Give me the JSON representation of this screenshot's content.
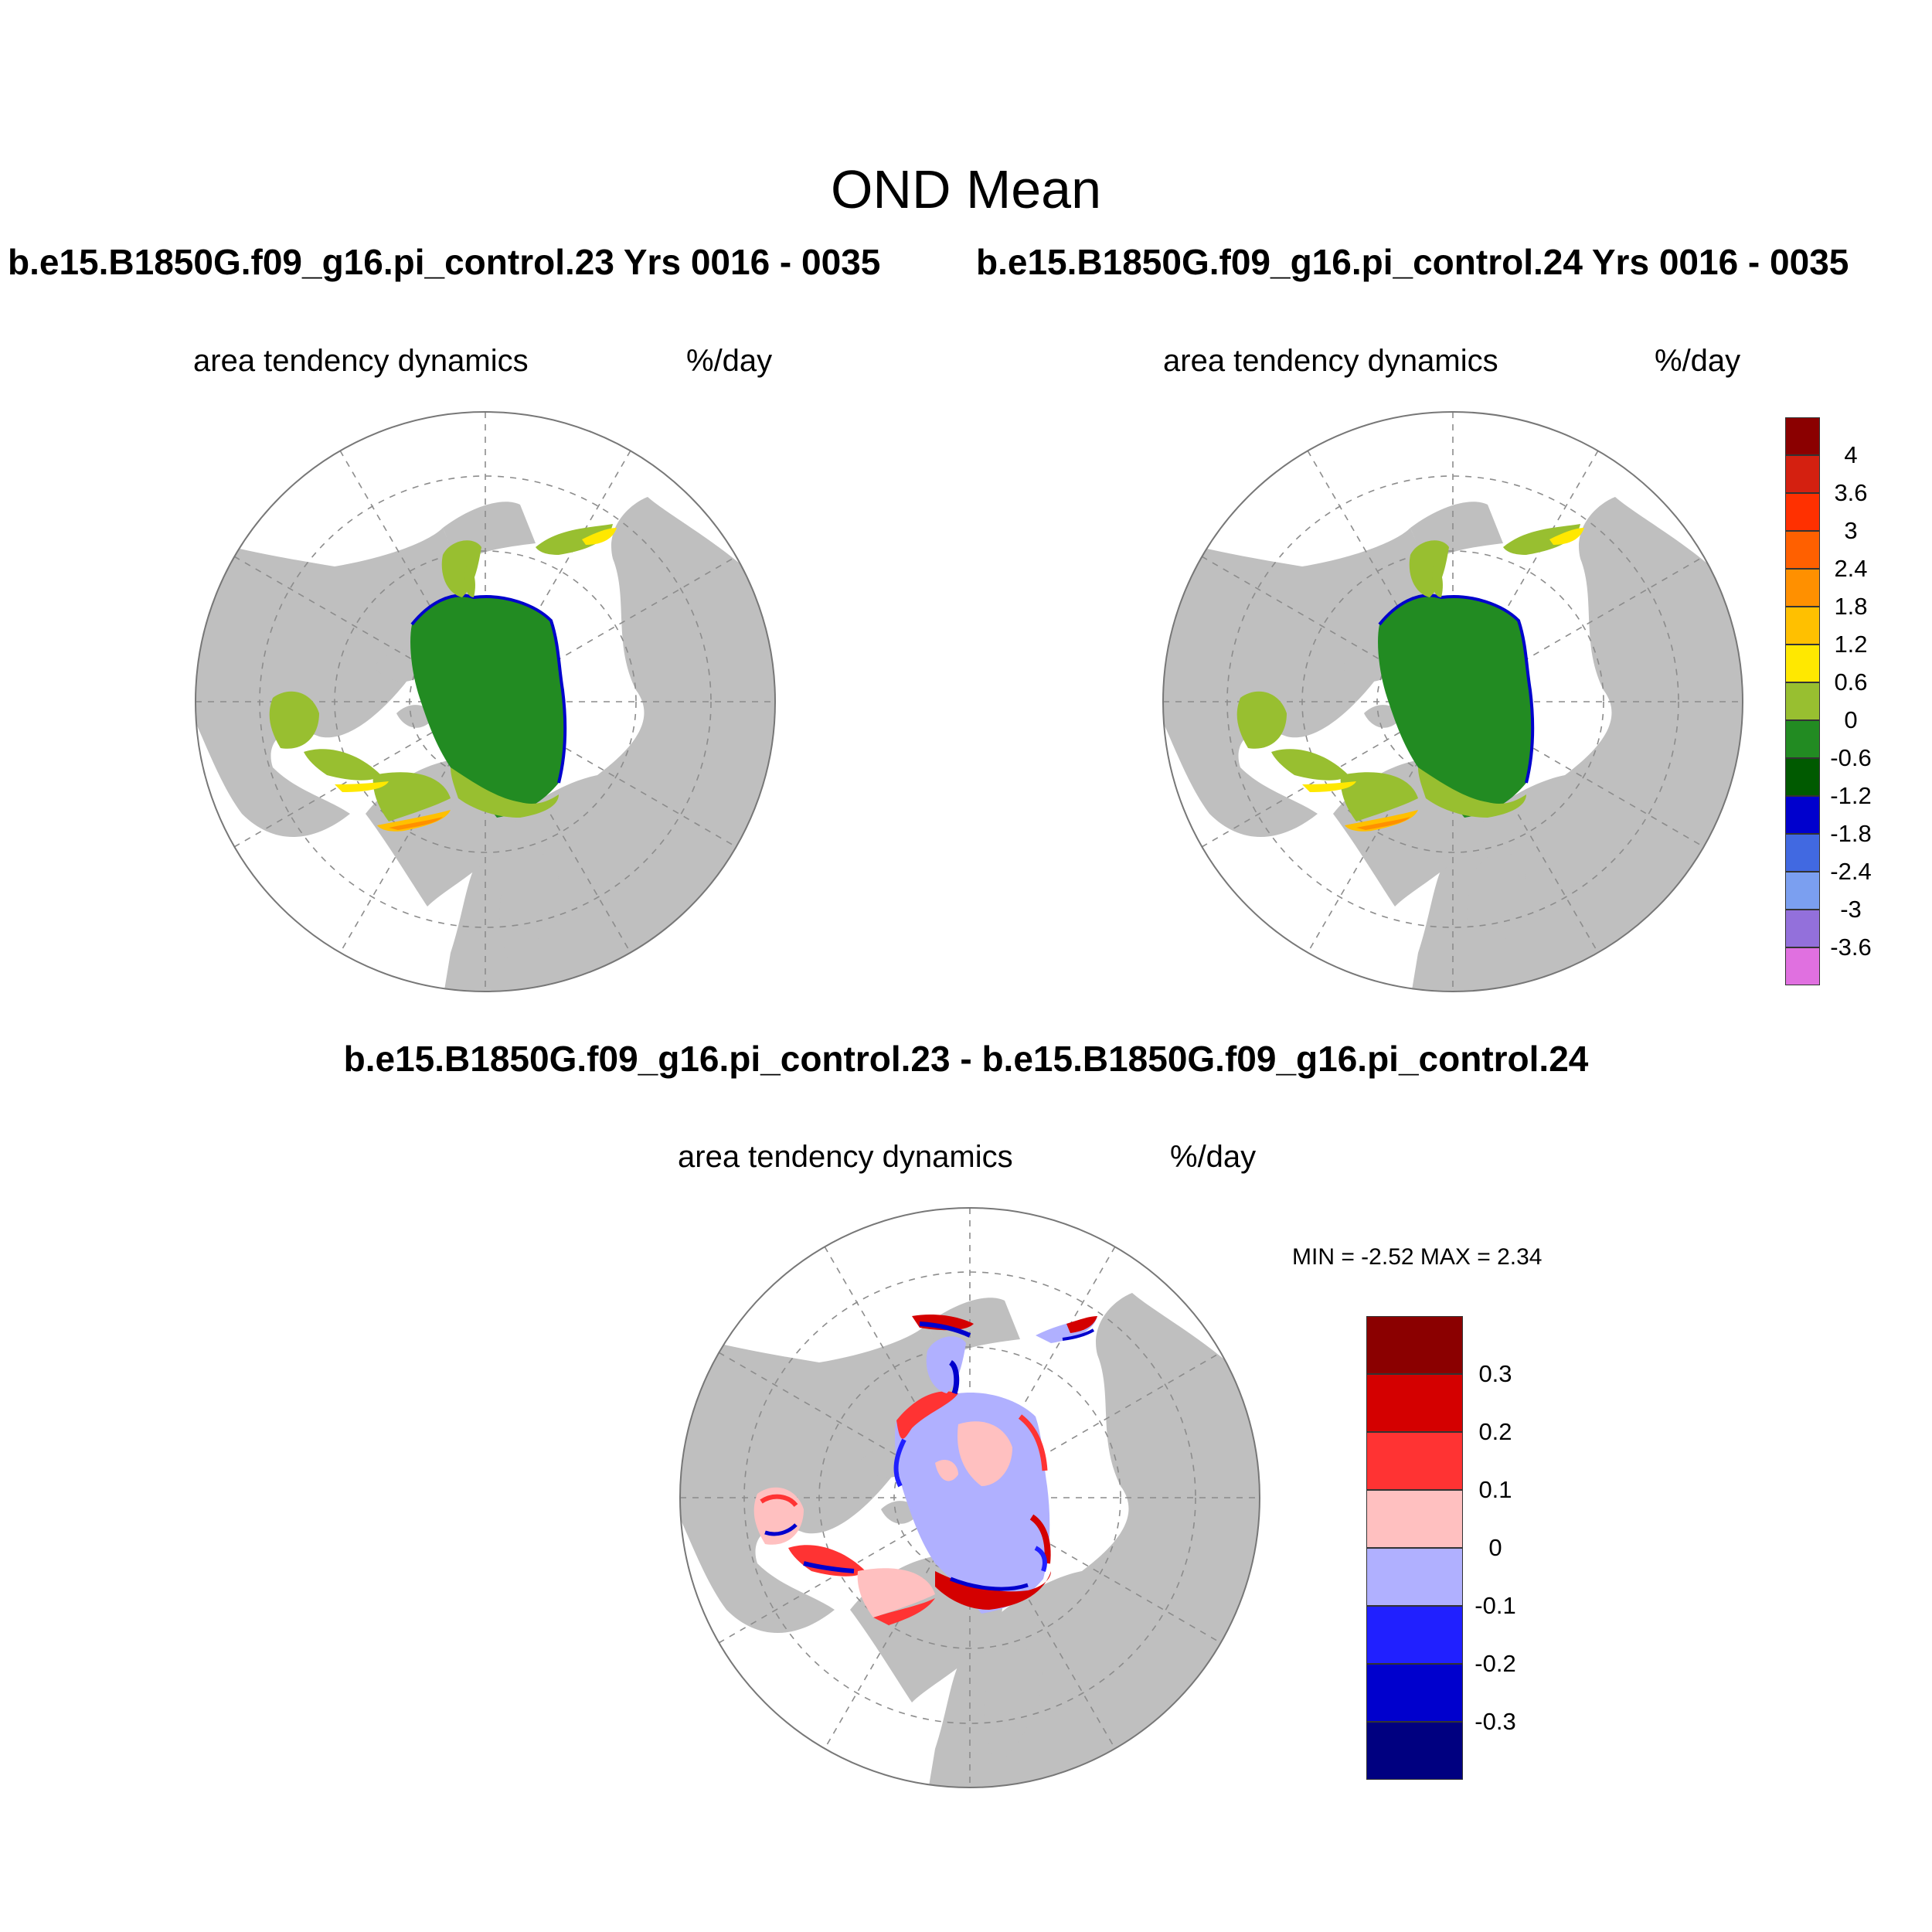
{
  "title": "OND Mean",
  "panels": [
    {
      "case": "b.e15.B1850G.f09_g16.pi_control.23  Yrs 0016 - 0035",
      "field": "area tendency dynamics",
      "units": "%/day"
    },
    {
      "case": "b.e15.B1850G.f09_g16.pi_control.24  Yrs 0016 - 0035",
      "field": "area tendency dynamics",
      "units": "%/day"
    },
    {
      "case": "b.e15.B1850G.f09_g16.pi_control.23 - b.e15.B1850G.f09_g16.pi_control.24",
      "field": "area tendency dynamics",
      "units": "%/day",
      "min_max": "MIN =  -2.52 MAX =   2.34"
    }
  ],
  "map": {
    "projection": "north-polar-stereographic",
    "land_color": "#bfbfbf",
    "ocean_color": "#ffffff",
    "grid_lines": "dashed"
  },
  "colorbar_main": {
    "colors": [
      "#8b0000",
      "#d42010",
      "#ff3000",
      "#ff6000",
      "#ff9000",
      "#ffc000",
      "#ffe800",
      "#98bf30",
      "#228b22",
      "#005a00",
      "#0000cd",
      "#4169e1",
      "#7b9ff0",
      "#9370db",
      "#e070e0"
    ],
    "labels": [
      "4",
      "3.6",
      "3",
      "2.4",
      "1.8",
      "1.2",
      "0.6",
      "0",
      "-0.6",
      "-1.2",
      "-1.8",
      "-2.4",
      "-3",
      "-3.6"
    ]
  },
  "colorbar_diff": {
    "colors": [
      "#8b0000",
      "#d40000",
      "#ff3333",
      "#ffc0c0",
      "#b0b0ff",
      "#2020ff",
      "#0000cd",
      "#000080"
    ],
    "labels": [
      "0.3",
      "0.2",
      "0.1",
      "0",
      "-0.1",
      "-0.2",
      "-0.3"
    ]
  }
}
